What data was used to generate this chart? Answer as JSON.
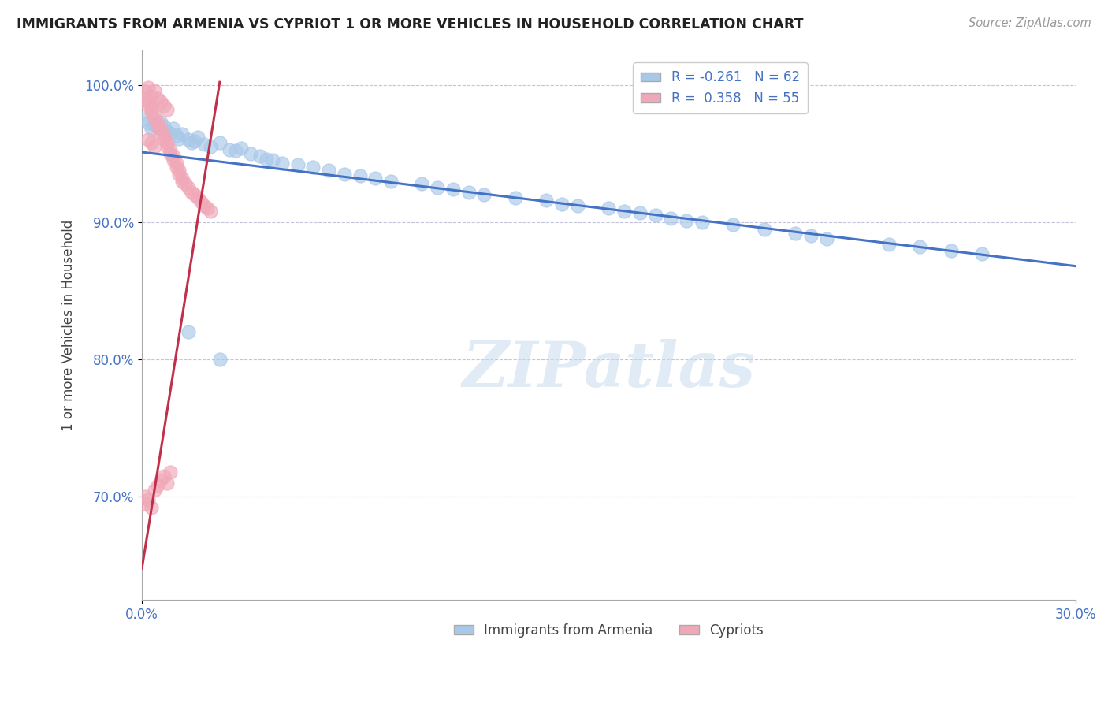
{
  "title": "IMMIGRANTS FROM ARMENIA VS CYPRIOT 1 OR MORE VEHICLES IN HOUSEHOLD CORRELATION CHART",
  "source": "Source: ZipAtlas.com",
  "ylabel": "1 or more Vehicles in Household",
  "xlim": [
    0.0,
    0.3
  ],
  "ylim": [
    0.625,
    1.025
  ],
  "xticks": [
    0.0,
    0.3
  ],
  "xticklabels": [
    "0.0%",
    "30.0%"
  ],
  "ytick_positions": [
    0.7,
    0.8,
    0.9,
    1.0
  ],
  "ytick_labels": [
    "70.0%",
    "80.0%",
    "90.0%",
    "100.0%"
  ],
  "R1": -0.261,
  "N1": 62,
  "R2": 0.358,
  "N2": 55,
  "color_blue": "#A8C8E8",
  "color_pink": "#F0A8B8",
  "line_color_blue": "#4472C4",
  "line_color_pink": "#C0304A",
  "watermark": "ZIPatlas",
  "legend_label_blue": "Immigrants from Armenia",
  "legend_label_pink": "Cypriots",
  "blue_x": [
    0.001,
    0.002,
    0.003,
    0.004,
    0.005,
    0.006,
    0.007,
    0.008,
    0.009,
    0.01,
    0.011,
    0.012,
    0.013,
    0.015,
    0.016,
    0.017,
    0.018,
    0.02,
    0.022,
    0.025,
    0.028,
    0.03,
    0.032,
    0.035,
    0.038,
    0.04,
    0.042,
    0.045,
    0.05,
    0.055,
    0.06,
    0.065,
    0.07,
    0.075,
    0.08,
    0.09,
    0.095,
    0.1,
    0.105,
    0.11,
    0.12,
    0.13,
    0.135,
    0.14,
    0.15,
    0.155,
    0.16,
    0.165,
    0.17,
    0.175,
    0.18,
    0.19,
    0.2,
    0.21,
    0.215,
    0.22,
    0.24,
    0.25,
    0.26,
    0.27,
    0.015,
    0.025
  ],
  "blue_y": [
    0.975,
    0.972,
    0.968,
    0.971,
    0.969,
    0.973,
    0.97,
    0.966,
    0.965,
    0.968,
    0.963,
    0.961,
    0.964,
    0.96,
    0.958,
    0.959,
    0.962,
    0.957,
    0.955,
    0.958,
    0.953,
    0.952,
    0.954,
    0.95,
    0.948,
    0.946,
    0.945,
    0.943,
    0.942,
    0.94,
    0.938,
    0.935,
    0.934,
    0.932,
    0.93,
    0.928,
    0.925,
    0.924,
    0.922,
    0.92,
    0.918,
    0.916,
    0.913,
    0.912,
    0.91,
    0.908,
    0.907,
    0.905,
    0.903,
    0.901,
    0.9,
    0.898,
    0.895,
    0.892,
    0.89,
    0.888,
    0.884,
    0.882,
    0.879,
    0.877,
    0.82,
    0.8
  ],
  "pink_x": [
    0.001,
    0.001,
    0.002,
    0.002,
    0.003,
    0.003,
    0.004,
    0.004,
    0.005,
    0.005,
    0.006,
    0.006,
    0.007,
    0.007,
    0.008,
    0.008,
    0.009,
    0.009,
    0.01,
    0.01,
    0.011,
    0.011,
    0.012,
    0.012,
    0.013,
    0.013,
    0.014,
    0.015,
    0.016,
    0.017,
    0.018,
    0.019,
    0.02,
    0.021,
    0.022,
    0.002,
    0.003,
    0.004,
    0.005,
    0.006,
    0.007,
    0.008,
    0.002,
    0.003,
    0.004,
    0.001,
    0.001,
    0.002,
    0.003,
    0.004,
    0.005,
    0.006,
    0.007,
    0.008,
    0.009
  ],
  "pink_y": [
    0.995,
    0.99,
    0.988,
    0.985,
    0.983,
    0.98,
    0.978,
    0.975,
    0.973,
    0.97,
    0.968,
    0.965,
    0.963,
    0.96,
    0.958,
    0.955,
    0.953,
    0.95,
    0.948,
    0.945,
    0.943,
    0.94,
    0.938,
    0.935,
    0.932,
    0.93,
    0.928,
    0.925,
    0.922,
    0.92,
    0.918,
    0.915,
    0.912,
    0.91,
    0.908,
    0.998,
    0.992,
    0.996,
    0.99,
    0.988,
    0.985,
    0.982,
    0.96,
    0.958,
    0.955,
    0.7,
    0.695,
    0.698,
    0.692,
    0.705,
    0.708,
    0.712,
    0.715,
    0.71,
    0.718
  ]
}
